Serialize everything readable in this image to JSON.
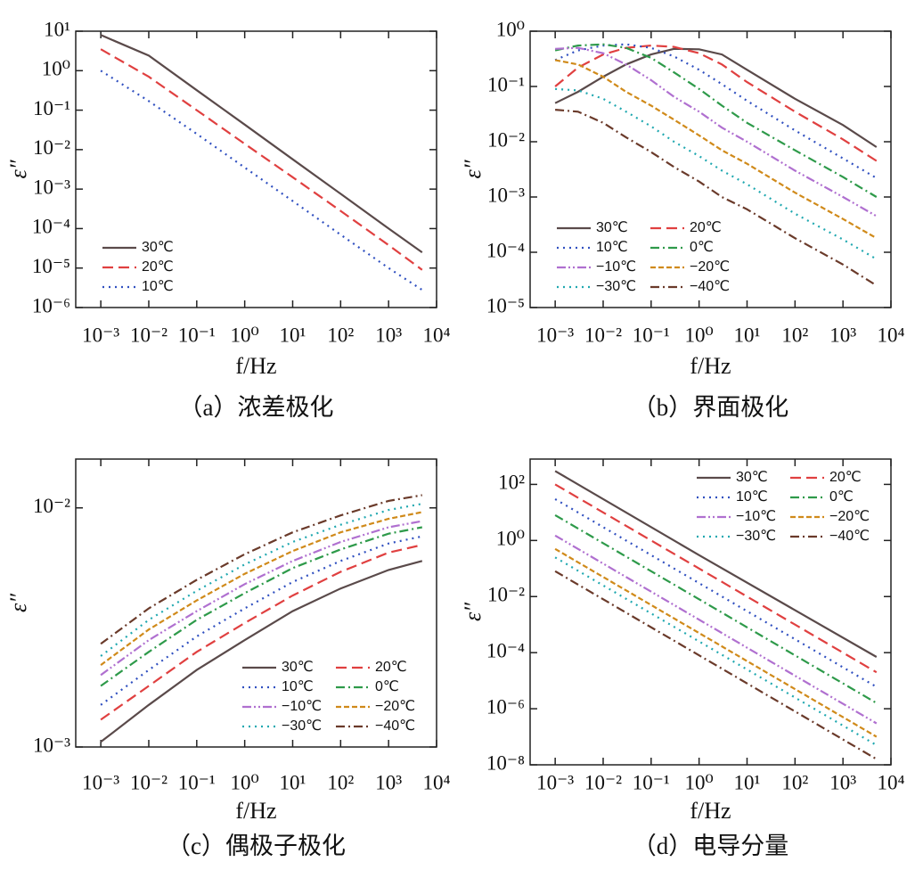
{
  "chart_data": [
    {
      "type": "line",
      "title": "（a）浓差极化",
      "xlabel": "f/Hz",
      "ylabel": "ε″",
      "log_x": true,
      "log_y": true,
      "legend": "lower left",
      "xlim": [
        0.0003,
        10000
      ],
      "ylim": [
        1e-06,
        10
      ],
      "xticks": [
        {
          "value": 0.001,
          "label": "10⁻³"
        },
        {
          "value": 0.01,
          "label": "10⁻²"
        },
        {
          "value": 0.1,
          "label": "10⁻¹"
        },
        {
          "value": 1,
          "label": "10⁰"
        },
        {
          "value": 10,
          "label": "10¹"
        },
        {
          "value": 100,
          "label": "10²"
        },
        {
          "value": 1000,
          "label": "10³"
        },
        {
          "value": 10000,
          "label": "10⁴"
        }
      ],
      "yticks": [
        {
          "value": 1e-06,
          "label": "10⁻⁶"
        },
        {
          "value": 1e-05,
          "label": "10⁻⁵"
        },
        {
          "value": 0.0001,
          "label": "10⁻⁴"
        },
        {
          "value": 0.001,
          "label": "10⁻³"
        },
        {
          "value": 0.01,
          "label": "10⁻²"
        },
        {
          "value": 0.1,
          "label": "10⁻¹"
        },
        {
          "value": 1,
          "label": "10⁰"
        },
        {
          "value": 10,
          "label": "10¹"
        }
      ],
      "x": [
        0.001,
        0.01,
        0.1,
        1,
        10,
        100,
        1000,
        5000
      ],
      "series": [
        {
          "name": "30℃",
          "color": "#5a4a4a",
          "dash": "solid",
          "values": [
            8,
            2.4,
            0.32,
            0.043,
            0.0057,
            0.00076,
            0.0001,
            2.5e-05
          ]
        },
        {
          "name": "20℃",
          "color": "#e04040",
          "dash": "dashed",
          "values": [
            3.5,
            0.7,
            0.1,
            0.014,
            0.002,
            0.00028,
            3.8e-05,
            9e-06
          ]
        },
        {
          "name": "10℃",
          "color": "#3050c0",
          "dash": "dotted",
          "values": [
            1.0,
            0.17,
            0.025,
            0.0035,
            0.0005,
            7e-05,
            1e-05,
            2.8e-06
          ]
        }
      ]
    },
    {
      "type": "line",
      "title": "（b）界面极化",
      "xlabel": "f/Hz",
      "ylabel": "ε″",
      "log_x": true,
      "log_y": true,
      "legend": "lower left",
      "xlim": [
        0.0003,
        10000
      ],
      "ylim": [
        1e-05,
        1
      ],
      "xticks": [
        {
          "value": 0.001,
          "label": "10⁻³"
        },
        {
          "value": 0.01,
          "label": "10⁻²"
        },
        {
          "value": 0.1,
          "label": "10⁻¹"
        },
        {
          "value": 1,
          "label": "10⁰"
        },
        {
          "value": 10,
          "label": "10¹"
        },
        {
          "value": 100,
          "label": "10²"
        },
        {
          "value": 1000,
          "label": "10³"
        },
        {
          "value": 10000,
          "label": "10⁴"
        }
      ],
      "yticks": [
        {
          "value": 1e-05,
          "label": "10⁻⁵"
        },
        {
          "value": 0.0001,
          "label": "10⁻⁴"
        },
        {
          "value": 0.001,
          "label": "10⁻³"
        },
        {
          "value": 0.01,
          "label": "10⁻²"
        },
        {
          "value": 0.1,
          "label": "10⁻¹"
        },
        {
          "value": 1,
          "label": "10⁰"
        }
      ],
      "x": [
        0.001,
        0.003,
        0.01,
        0.03,
        0.1,
        0.3,
        1,
        3,
        10,
        100,
        1000,
        5000
      ],
      "series": [
        {
          "name": "30℃",
          "color": "#5a4a4a",
          "dash": "solid",
          "values": [
            0.05,
            0.08,
            0.15,
            0.25,
            0.38,
            0.48,
            0.47,
            0.38,
            0.2,
            0.06,
            0.02,
            0.008
          ]
        },
        {
          "name": "20℃",
          "color": "#e04040",
          "dash": "dashed",
          "values": [
            0.1,
            0.22,
            0.38,
            0.5,
            0.55,
            0.52,
            0.4,
            0.25,
            0.12,
            0.035,
            0.011,
            0.0045
          ]
        },
        {
          "name": "10℃",
          "color": "#3050c0",
          "dash": "dotted",
          "values": [
            0.3,
            0.45,
            0.55,
            0.58,
            0.5,
            0.35,
            0.2,
            0.11,
            0.055,
            0.016,
            0.005,
            0.0022
          ]
        },
        {
          "name": "0℃",
          "color": "#2e9a4a",
          "dash": "dashdot",
          "values": [
            0.45,
            0.55,
            0.58,
            0.5,
            0.33,
            0.18,
            0.09,
            0.045,
            0.022,
            0.007,
            0.0023,
            0.001
          ]
        },
        {
          "name": "−10℃",
          "color": "#b070d0",
          "dash": "dashdotdot",
          "values": [
            0.48,
            0.5,
            0.4,
            0.25,
            0.13,
            0.065,
            0.035,
            0.018,
            0.01,
            0.003,
            0.001,
            0.00045
          ]
        },
        {
          "name": "−20℃",
          "color": "#d08a1a",
          "dash": "shortdash",
          "values": [
            0.3,
            0.25,
            0.15,
            0.08,
            0.045,
            0.025,
            0.013,
            0.007,
            0.004,
            0.0012,
            0.0004,
            0.00018
          ]
        },
        {
          "name": "−30℃",
          "color": "#20a8b0",
          "dash": "dotted",
          "values": [
            0.09,
            0.085,
            0.06,
            0.035,
            0.019,
            0.01,
            0.0055,
            0.003,
            0.0017,
            0.0005,
            0.00017,
            7.5e-05
          ]
        },
        {
          "name": "−40℃",
          "color": "#6a3a2a",
          "dash": "dashdot",
          "values": [
            0.038,
            0.035,
            0.022,
            0.012,
            0.0065,
            0.0035,
            0.0019,
            0.001,
            0.0006,
            0.00018,
            6e-05,
            2.5e-05
          ]
        }
      ]
    },
    {
      "type": "line",
      "title": "（c）偶极子极化",
      "xlabel": "f/Hz",
      "ylabel": "ε″",
      "log_x": true,
      "log_y": true,
      "legend": "lower right",
      "xlim": [
        0.0003,
        10000
      ],
      "ylim": [
        0.001,
        0.016
      ],
      "xticks": [
        {
          "value": 0.001,
          "label": "10⁻³"
        },
        {
          "value": 0.01,
          "label": "10⁻²"
        },
        {
          "value": 0.1,
          "label": "10⁻¹"
        },
        {
          "value": 1,
          "label": "10⁰"
        },
        {
          "value": 10,
          "label": "10¹"
        },
        {
          "value": 100,
          "label": "10²"
        },
        {
          "value": 1000,
          "label": "10³"
        },
        {
          "value": 10000,
          "label": "10⁴"
        }
      ],
      "yticks": [
        {
          "value": 0.001,
          "label": "10⁻³"
        },
        {
          "value": 0.01,
          "label": "10⁻²"
        }
      ],
      "x": [
        0.001,
        0.01,
        0.1,
        1,
        10,
        100,
        1000,
        5000
      ],
      "series": [
        {
          "name": "30℃",
          "color": "#5a4a4a",
          "dash": "solid",
          "values": [
            0.00105,
            0.0015,
            0.0021,
            0.0028,
            0.0037,
            0.0046,
            0.0055,
            0.006
          ]
        },
        {
          "name": "20℃",
          "color": "#e04040",
          "dash": "dashed",
          "values": [
            0.0013,
            0.0018,
            0.0025,
            0.0033,
            0.0043,
            0.0054,
            0.0065,
            0.007
          ]
        },
        {
          "name": "10℃",
          "color": "#3050c0",
          "dash": "dotted",
          "values": [
            0.0015,
            0.0021,
            0.0029,
            0.0038,
            0.0049,
            0.006,
            0.0071,
            0.0076
          ]
        },
        {
          "name": "0℃",
          "color": "#2e9a4a",
          "dash": "dashdot",
          "values": [
            0.0018,
            0.0025,
            0.0034,
            0.0044,
            0.0056,
            0.0067,
            0.0078,
            0.0083
          ]
        },
        {
          "name": "−10℃",
          "color": "#b070d0",
          "dash": "dashdotdot",
          "values": [
            0.002,
            0.0028,
            0.0037,
            0.0048,
            0.006,
            0.0072,
            0.0083,
            0.0088
          ]
        },
        {
          "name": "−20℃",
          "color": "#d08a1a",
          "dash": "shortdash",
          "values": [
            0.0022,
            0.0031,
            0.0041,
            0.0053,
            0.0066,
            0.0079,
            0.009,
            0.0096
          ]
        },
        {
          "name": "−30℃",
          "color": "#20a8b0",
          "dash": "dotted",
          "values": [
            0.0024,
            0.0034,
            0.0045,
            0.0058,
            0.0072,
            0.0085,
            0.0098,
            0.0104
          ]
        },
        {
          "name": "−40℃",
          "color": "#6a3a2a",
          "dash": "dashdot",
          "values": [
            0.0027,
            0.0038,
            0.005,
            0.0064,
            0.0079,
            0.0093,
            0.0107,
            0.0113
          ]
        }
      ]
    },
    {
      "type": "line",
      "title": "（d）电导分量",
      "xlabel": "f/Hz",
      "ylabel": "ε″",
      "log_x": true,
      "log_y": true,
      "legend": "upper right",
      "xlim": [
        0.0003,
        10000
      ],
      "ylim": [
        1e-08,
        800
      ],
      "xticks": [
        {
          "value": 0.001,
          "label": "10⁻³"
        },
        {
          "value": 0.01,
          "label": "10⁻²"
        },
        {
          "value": 0.1,
          "label": "10⁻¹"
        },
        {
          "value": 1,
          "label": "10⁰"
        },
        {
          "value": 10,
          "label": "10¹"
        },
        {
          "value": 100,
          "label": "10²"
        },
        {
          "value": 1000,
          "label": "10³"
        },
        {
          "value": 10000,
          "label": "10⁴"
        }
      ],
      "yticks": [
        {
          "value": 1e-08,
          "label": "10⁻⁸"
        },
        {
          "value": 1e-06,
          "label": "10⁻⁶"
        },
        {
          "value": 0.0001,
          "label": "10⁻⁴"
        },
        {
          "value": 0.01,
          "label": "10⁻²"
        },
        {
          "value": 1,
          "label": "10⁰"
        },
        {
          "value": 100,
          "label": "10²"
        }
      ],
      "x": [
        0.001,
        1,
        5000
      ],
      "series": [
        {
          "name": "30℃",
          "color": "#5a4a4a",
          "dash": "solid",
          "values": [
            300,
            0.3,
            7e-05
          ]
        },
        {
          "name": "20℃",
          "color": "#e04040",
          "dash": "dashed",
          "values": [
            100,
            0.1,
            2e-05
          ]
        },
        {
          "name": "10℃",
          "color": "#3050c0",
          "dash": "dotted",
          "values": [
            30,
            0.03,
            6e-06
          ]
        },
        {
          "name": "0℃",
          "color": "#2e9a4a",
          "dash": "dashdot",
          "values": [
            8,
            0.008,
            1.6e-06
          ]
        },
        {
          "name": "−10℃",
          "color": "#b070d0",
          "dash": "dashdotdot",
          "values": [
            1.5,
            0.0015,
            3e-07
          ]
        },
        {
          "name": "−20℃",
          "color": "#d08a1a",
          "dash": "shortdash",
          "values": [
            0.5,
            0.0005,
            1e-07
          ]
        },
        {
          "name": "−30℃",
          "color": "#20a8b0",
          "dash": "dotted",
          "values": [
            0.25,
            0.00025,
            5e-08
          ]
        },
        {
          "name": "−40℃",
          "color": "#6a3a2a",
          "dash": "dashdot",
          "values": [
            0.08,
            8e-05,
            1.6e-08
          ]
        }
      ]
    }
  ]
}
